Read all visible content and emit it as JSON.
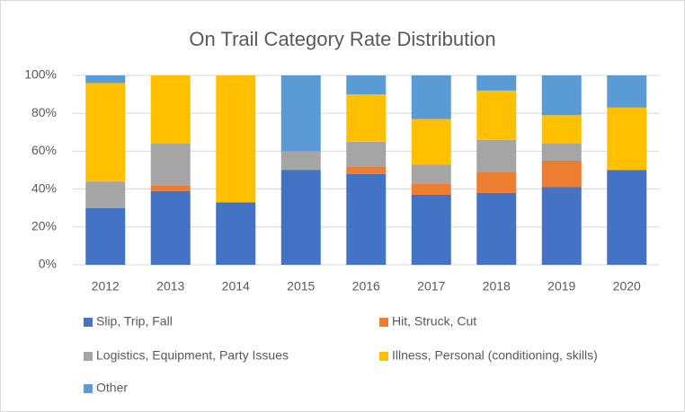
{
  "chart_data": {
    "type": "stacked_bar",
    "title": "On Trail Category Rate Distribution",
    "categories": [
      "2012",
      "2013",
      "2014",
      "2015",
      "2016",
      "2017",
      "2018",
      "2019",
      "2020"
    ],
    "series": [
      {
        "name": "Slip, Trip, Fall",
        "color": "#4472c4",
        "values": [
          30,
          39,
          33,
          50,
          48,
          37,
          38,
          41,
          50
        ]
      },
      {
        "name": "Hit, Struck, Cut",
        "color": "#ed7d31",
        "values": [
          0,
          3,
          0,
          0,
          4,
          6,
          11,
          14,
          0
        ]
      },
      {
        "name": "Logistics, Equipment, Party Issues",
        "color": "#a5a5a5",
        "values": [
          14,
          22,
          0,
          10,
          13,
          10,
          17,
          9,
          0
        ]
      },
      {
        "name": "Illness, Personal (conditioning, skills)",
        "color": "#ffc000",
        "values": [
          52,
          36,
          67,
          0,
          25,
          24,
          26,
          15,
          33
        ]
      },
      {
        "name": "Other",
        "color": "#5b9bd5",
        "values": [
          4,
          0,
          0,
          40,
          10,
          23,
          8,
          21,
          17
        ]
      }
    ],
    "ylim": [
      0,
      100
    ],
    "yticks": [
      {
        "value": 0,
        "label": "0%"
      },
      {
        "value": 20,
        "label": "20%"
      },
      {
        "value": 40,
        "label": "40%"
      },
      {
        "value": 60,
        "label": "60%"
      },
      {
        "value": 80,
        "label": "80%"
      },
      {
        "value": 100,
        "label": "100%"
      }
    ],
    "grid": true
  }
}
